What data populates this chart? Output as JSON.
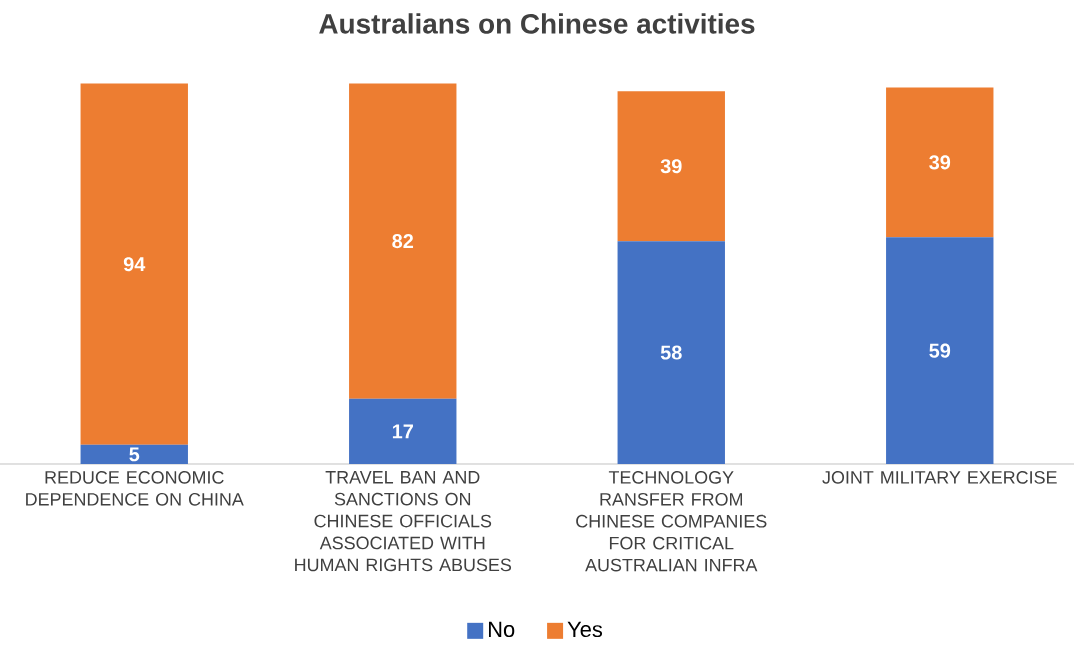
{
  "chart_data": {
    "type": "bar",
    "title": "Australians  on Chinese activities",
    "stacked": true,
    "data_labels": true,
    "legend": "bottom",
    "categories": [
      "REDUCE ECONOMIC DEPENDENCE ON CHINA",
      "TRAVEL BAN AND SANCTIONS  ON CHINESE OFFICIALS ASSOCIATED WITH HUMAN RIGHTS ABUSES",
      "TECHNOLOGY RANSFER FROM CHINESE COMPANIES FOR CRITICAL AUSTRALIAN INFRA",
      "JOINT MILITARY EXERCISE"
    ],
    "series": [
      {
        "name": "No",
        "color": "#4472c4",
        "values": [
          5,
          17,
          58,
          59
        ]
      },
      {
        "name": "Yes",
        "color": "#ed7d31",
        "values": [
          94,
          82,
          39,
          39
        ]
      }
    ]
  }
}
